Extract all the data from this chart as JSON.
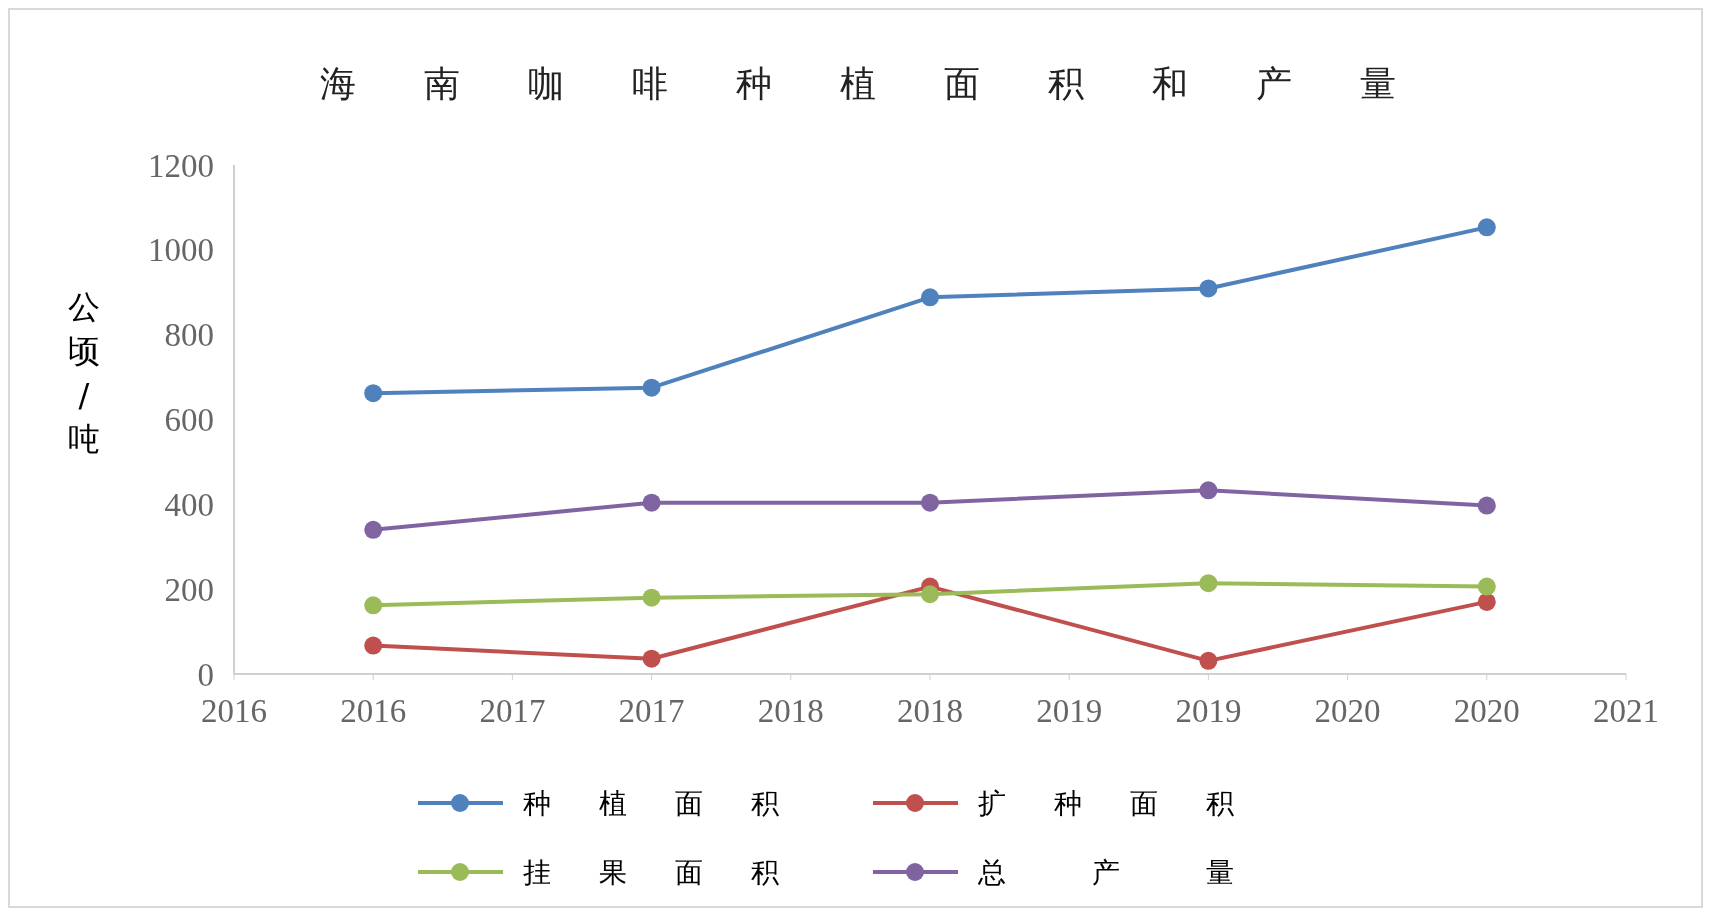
{
  "chart_data": {
    "type": "line",
    "title": "海南咖啡种植面积和产量",
    "ylabel": "公顷/吨",
    "x": [
      2016,
      2017,
      2018,
      2019,
      2020
    ],
    "xlim": [
      2015.5,
      2020.5
    ],
    "xticks": [
      {
        "value": 2015.5,
        "label": "2016"
      },
      {
        "value": 2016,
        "label": "2016"
      },
      {
        "value": 2016.5,
        "label": "2017"
      },
      {
        "value": 2017,
        "label": "2017"
      },
      {
        "value": 2017.5,
        "label": "2018"
      },
      {
        "value": 2018,
        "label": "2018"
      },
      {
        "value": 2018.5,
        "label": "2019"
      },
      {
        "value": 2019,
        "label": "2019"
      },
      {
        "value": 2019.5,
        "label": "2020"
      },
      {
        "value": 2020,
        "label": "2020"
      },
      {
        "value": 2020.5,
        "label": "2021"
      }
    ],
    "ylim": [
      0,
      1200
    ],
    "yticks": [
      0,
      200,
      400,
      600,
      800,
      1000,
      1200
    ],
    "series": [
      {
        "name": "种植面积",
        "color": "#4f81bd",
        "values": [
          662,
          675,
          888,
          909,
          1053
        ]
      },
      {
        "name": "扩种面积",
        "color": "#c0504d",
        "values": [
          67,
          36,
          206,
          31,
          170
        ]
      },
      {
        "name": "挂果面积",
        "color": "#9bbb59",
        "values": [
          162,
          180,
          188,
          214,
          206
        ]
      },
      {
        "name": "总产量",
        "color": "#8064a2",
        "values": [
          340,
          404,
          404,
          433,
          397
        ]
      }
    ],
    "marker": "circle",
    "legend": "bottom",
    "grid": false
  }
}
